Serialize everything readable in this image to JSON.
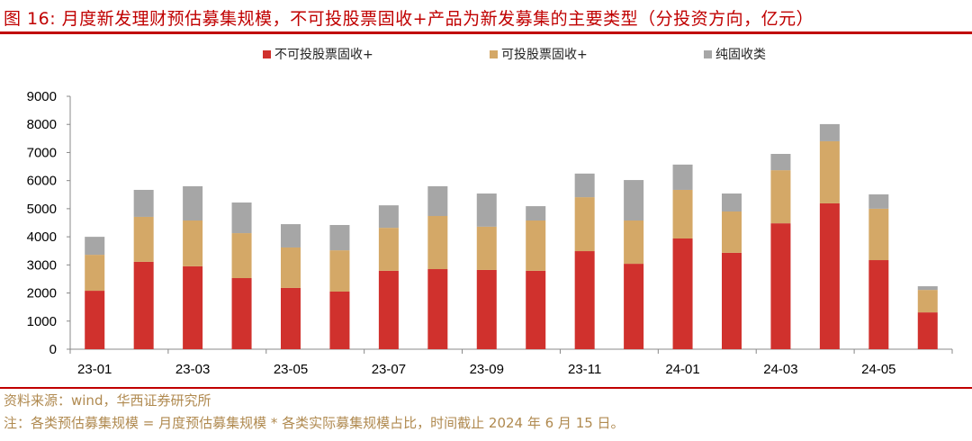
{
  "title": "图 16:  月度新发理财预估募集规模，不可投股票固收+产品为新发募集的主要类型（分投资方向，亿元）",
  "source": "资料来源：wind，华西证券研究所",
  "note": "注：各类预估募集规模 = 月度预估募集规模 * 各类实际募集规模占比，时间截止 2024 年 6 月 15 日。",
  "chart_data": {
    "type": "bar",
    "stacked": true,
    "title": "",
    "xlabel": "",
    "ylabel": "",
    "ylim": [
      0,
      9000
    ],
    "y_ticks": [
      0,
      1000,
      2000,
      3000,
      4000,
      5000,
      6000,
      7000,
      8000,
      9000
    ],
    "categories": [
      "23-01",
      "23-02",
      "23-03",
      "23-04",
      "23-05",
      "23-06",
      "23-07",
      "23-08",
      "23-09",
      "23-10",
      "23-11",
      "23-12",
      "24-01",
      "24-02",
      "24-03",
      "24-04",
      "24-05",
      "24-06"
    ],
    "x_tick_labels": [
      "23-01",
      "",
      "23-03",
      "",
      "23-05",
      "",
      "23-07",
      "",
      "23-09",
      "",
      "23-11",
      "",
      "24-01",
      "",
      "24-03",
      "",
      "24-05",
      ""
    ],
    "legend_position": "top",
    "grid": false,
    "series": [
      {
        "name": "不可投股票固收+",
        "color": "#d0312d",
        "values": [
          2080,
          3110,
          2950,
          2530,
          2180,
          2050,
          2790,
          2850,
          2820,
          2790,
          3490,
          3040,
          3940,
          3430,
          4480,
          5190,
          3170,
          1310
        ]
      },
      {
        "name": "可投股票固收+",
        "color": "#d4a867",
        "values": [
          1280,
          1600,
          1630,
          1600,
          1440,
          1470,
          1530,
          1890,
          1540,
          1790,
          1920,
          1540,
          1730,
          1470,
          1890,
          2210,
          1830,
          800
        ]
      },
      {
        "name": "纯固收类",
        "color": "#a6a6a6",
        "values": [
          640,
          960,
          1220,
          1090,
          830,
          900,
          800,
          1060,
          1180,
          510,
          840,
          1440,
          900,
          640,
          580,
          610,
          510,
          130
        ]
      }
    ]
  }
}
